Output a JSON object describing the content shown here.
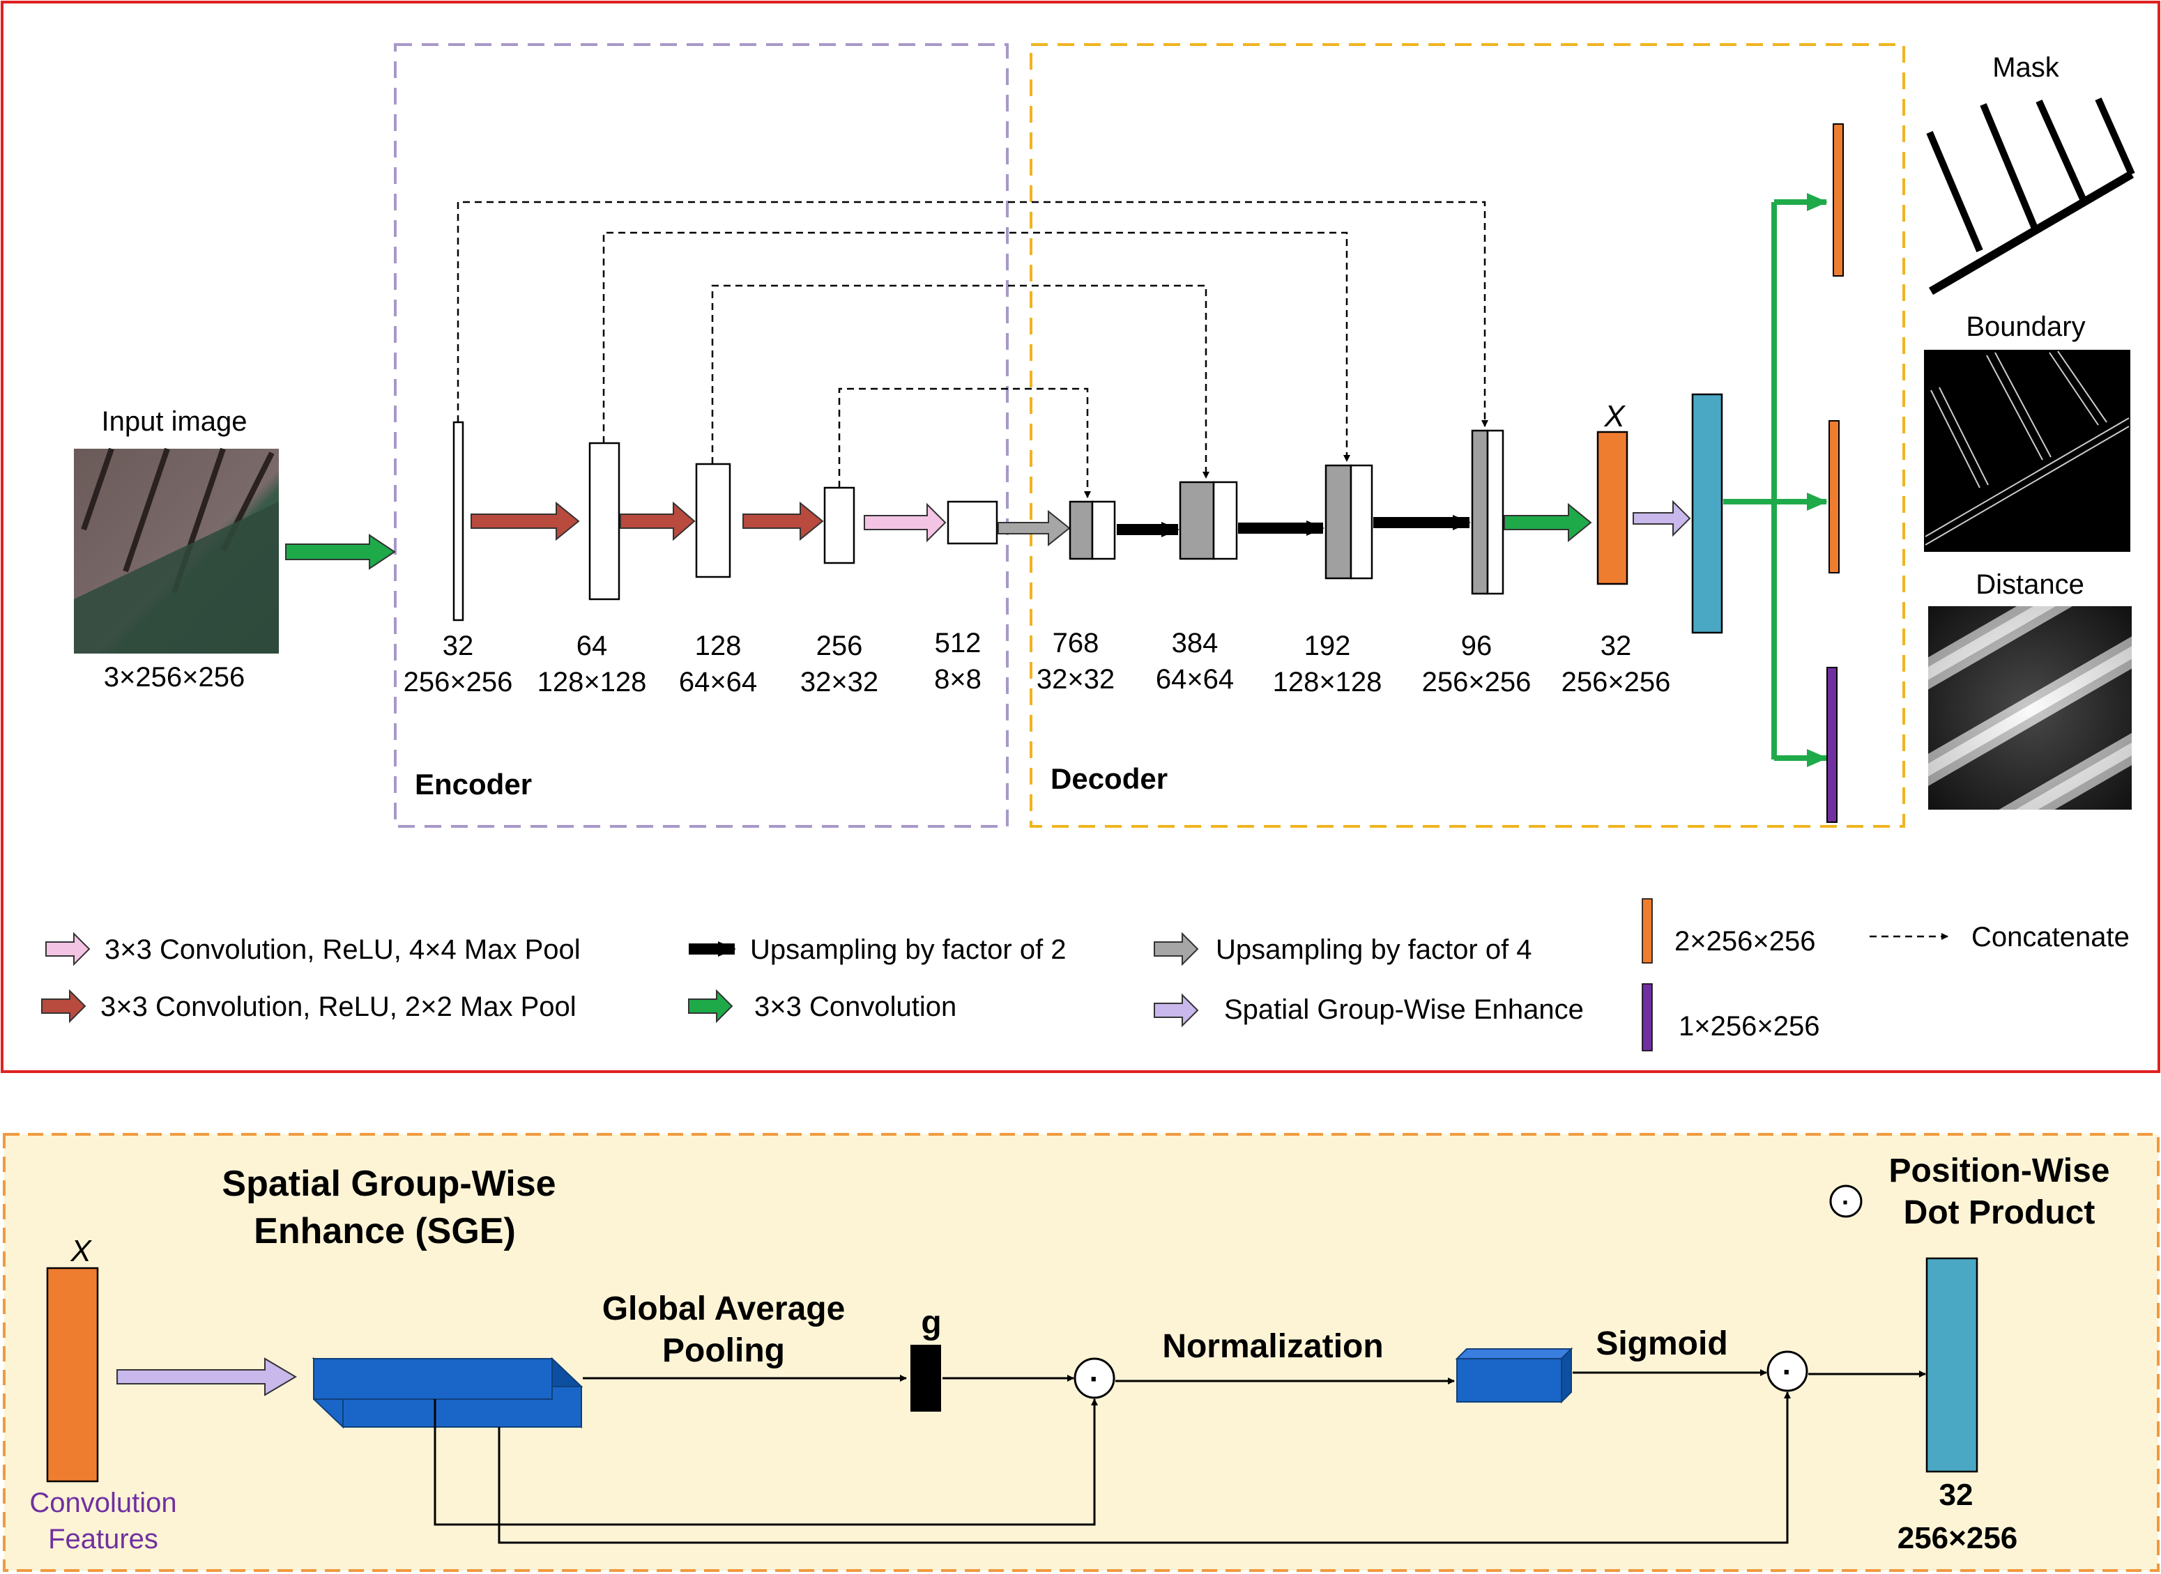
{
  "top": {
    "input": {
      "title": "Input image",
      "dims": "3×256×256"
    },
    "encoder_label": "Encoder",
    "decoder_label": "Decoder",
    "x_label": "X",
    "encoder_blocks": [
      {
        "channels": "32",
        "size": "256×256"
      },
      {
        "channels": "64",
        "size": "128×128"
      },
      {
        "channels": "128",
        "size": "64×64"
      },
      {
        "channels": "256",
        "size": "32×32"
      },
      {
        "channels": "512",
        "size": "8×8"
      }
    ],
    "decoder_blocks": [
      {
        "channels": "768",
        "size": "32×32"
      },
      {
        "channels": "384",
        "size": "64×64"
      },
      {
        "channels": "192",
        "size": "128×128"
      },
      {
        "channels": "96",
        "size": "256×256"
      },
      {
        "channels": "32",
        "size": "256×256"
      }
    ],
    "outputs": [
      "Mask",
      "Boundary",
      "Distance"
    ]
  },
  "legend": {
    "conv_relu_4x4": "3×3 Convolution, ReLU, 4×4 Max Pool",
    "conv_relu_2x2": "3×3 Convolution, ReLU, 2×2 Max Pool",
    "upsample_2": "Upsampling by factor of 2",
    "conv_3x3": "3×3 Convolution",
    "upsample_4": "Upsampling by factor of 4",
    "sge": "Spatial Group-Wise Enhance",
    "out_2ch": "2×256×256",
    "out_1ch": "1×256×256",
    "concat": "Concatenate"
  },
  "sge": {
    "title_line1": "Spatial Group-Wise",
    "title_line2": "Enhance (SGE)",
    "x_label": "X",
    "conv_features_line1": "Convolution",
    "conv_features_line2": "Features",
    "gap_line1": "Global Average",
    "gap_line2": "Pooling",
    "g_label": "g",
    "normalization": "Normalization",
    "sigmoid": "Sigmoid",
    "dot_symbol": "·",
    "pwdp_line1": "Position-Wise",
    "pwdp_line2": "Dot Product",
    "out_channels": "32",
    "out_size": "256×256"
  },
  "colors": {
    "red_frame": "#e02020",
    "purple_dash": "#a898c8",
    "yellow_dash": "#f0b420",
    "orange_dash": "#f09a40",
    "sge_bg": "#fdf4d6",
    "orange_block": "#ef7d30",
    "teal_block": "#4aa8c4",
    "purple_block": "#7030a0",
    "arrow_green": "#1faa4a",
    "arrow_red": "#b84a3e",
    "arrow_pink": "#f4c4e4",
    "arrow_lavender": "#c8b8ec",
    "arrow_gray": "#a6a6a6",
    "sge_blue": "#1a66c8",
    "text_purple": "#7030a0"
  }
}
